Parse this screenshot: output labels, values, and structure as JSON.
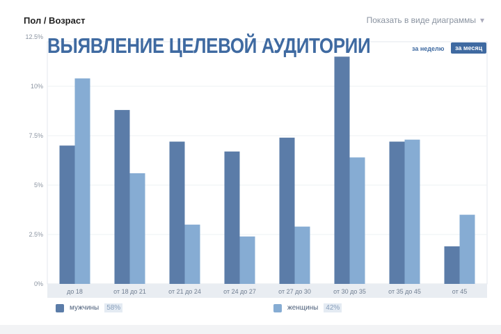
{
  "header": {
    "title": "Пол / Возраст",
    "view_toggle": "Показать в виде диаграммы",
    "view_arrow": "▾"
  },
  "banner": {
    "text": "ВЫЯВЛЕНИЕ ЦЕЛЕВОЙ АУДИТОРИИ",
    "week": "за неделю",
    "month": "за месяц"
  },
  "chart_data": {
    "type": "bar",
    "title": "Пол / Возраст",
    "xlabel": "",
    "ylabel": "",
    "categories": [
      "до 18",
      "от 18 до 21",
      "от 21 до 24",
      "от 24 до 27",
      "от 27 до 30",
      "от 30 до 35",
      "от 35 до 45",
      "от 45"
    ],
    "series": [
      {
        "name": "мужчины",
        "share": "58%",
        "color": "#5b7ca8",
        "values": [
          7.0,
          8.8,
          7.2,
          6.7,
          7.4,
          11.5,
          7.2,
          1.9
        ]
      },
      {
        "name": "женщины",
        "share": "42%",
        "color": "#86acd3",
        "values": [
          10.4,
          5.6,
          3.0,
          2.4,
          2.9,
          6.4,
          7.3,
          3.5
        ]
      }
    ],
    "ylim": [
      0,
      12.5
    ],
    "yticks": [
      {
        "v": 0,
        "label": "0%"
      },
      {
        "v": 2.5,
        "label": "2.5%"
      },
      {
        "v": 5,
        "label": "5%"
      },
      {
        "v": 7.5,
        "label": "7.5%"
      },
      {
        "v": 10,
        "label": "10%"
      },
      {
        "v": 12.5,
        "label": "12.5%"
      }
    ],
    "grid": true,
    "legend": "bottom"
  }
}
